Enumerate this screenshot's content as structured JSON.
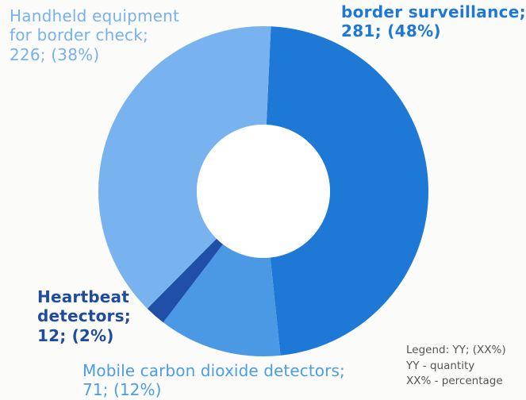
{
  "chart_data": {
    "type": "donut",
    "unit": "quantity",
    "slices": [
      {
        "key": "border",
        "label_lines": [
          "border surveillance;",
          "281; (48%)"
        ],
        "value": 281,
        "percent": 48,
        "color": "#1e78d6",
        "label_color": "#1e78d6"
      },
      {
        "key": "co2",
        "label_lines": [
          "Mobile carbon dioxide detectors;",
          "71; (12%)"
        ],
        "value": 71,
        "percent": 12,
        "color": "#4b99e5",
        "label_color": "#4d9ce6"
      },
      {
        "key": "heartbeat",
        "label_lines": [
          "Heartbeat",
          "detectors;",
          "12; (2%)"
        ],
        "value": 12,
        "percent": 2,
        "color": "#1f4fa7",
        "label_color": "#1f4c9e"
      },
      {
        "key": "handheld",
        "label_lines": [
          "Handheld equipment",
          "for border check;",
          "226; (38%)"
        ],
        "value": 226,
        "percent": 38,
        "color": "#78b3ef",
        "label_color": "#77b1ee"
      }
    ],
    "legend_lines": [
      "Legend: YY; (XX%)",
      "YY - quantity",
      "XX% - percentage"
    ]
  }
}
